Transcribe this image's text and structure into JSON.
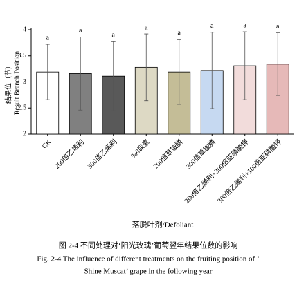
{
  "chart_data": {
    "type": "bar",
    "ylabel": [
      "结果位（节）",
      "Result Branch Position"
    ],
    "xlabel": "落脱叶剂/Defoliant",
    "categories": [
      "CK",
      "200倍乙烯利",
      "300倍乙烯利",
      "%0尿素",
      "200倍草铵膦",
      "300倍草铵膦",
      "200倍乙烯利+300倍亚磷酸钾",
      "300倍乙烯利+100倍亚磷酸钾"
    ],
    "values": [
      3.19,
      3.16,
      3.11,
      3.28,
      3.19,
      3.22,
      3.31,
      3.34
    ],
    "errors": [
      0.53,
      0.7,
      0.66,
      0.64,
      0.62,
      0.73,
      0.65,
      0.6
    ],
    "significance": [
      "a",
      "a",
      "a",
      "a",
      "a",
      "a",
      "a",
      "a"
    ],
    "colors": [
      "#ffffff",
      "#808080",
      "#595959",
      "#ddd9c4",
      "#c4bd97",
      "#c6d9f1",
      "#f2dcdb",
      "#e6b9b8"
    ],
    "ylim": [
      2,
      4
    ],
    "yticks": [
      2,
      2.5,
      3,
      3.5,
      4
    ]
  },
  "caption": [
    "图 2-4 不同处理对‘阳光玫瑰’葡萄翌年结果位数的影响",
    "Fig. 2-4 The influence of different treatments on the fruiting position of ‘",
    "Shine Muscat’ grape in the following year"
  ]
}
